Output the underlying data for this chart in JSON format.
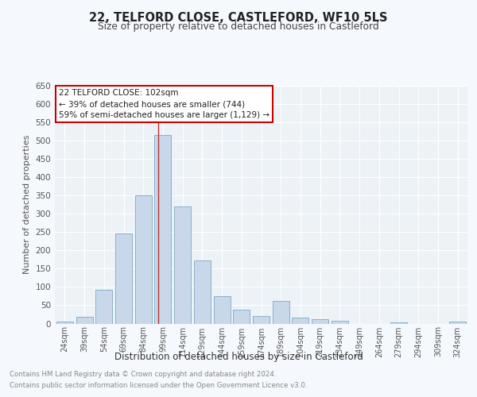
{
  "title": "22, TELFORD CLOSE, CASTLEFORD, WF10 5LS",
  "subtitle": "Size of property relative to detached houses in Castleford",
  "xlabel": "Distribution of detached houses by size in Castleford",
  "ylabel": "Number of detached properties",
  "footnote1": "Contains HM Land Registry data © Crown copyright and database right 2024.",
  "footnote2": "Contains public sector information licensed under the Open Government Licence v3.0.",
  "bar_labels": [
    "24sqm",
    "39sqm",
    "54sqm",
    "69sqm",
    "84sqm",
    "99sqm",
    "114sqm",
    "129sqm",
    "144sqm",
    "159sqm",
    "174sqm",
    "189sqm",
    "204sqm",
    "219sqm",
    "234sqm",
    "249sqm",
    "264sqm",
    "279sqm",
    "294sqm",
    "309sqm",
    "324sqm"
  ],
  "bar_values": [
    5,
    18,
    92,
    247,
    350,
    515,
    320,
    172,
    75,
    37,
    20,
    62,
    16,
    13,
    7,
    0,
    0,
    4,
    0,
    0,
    5
  ],
  "bar_color": "#c8d8ea",
  "bar_edge_color": "#7aaac8",
  "property_label": "22 TELFORD CLOSE: 102sqm",
  "annotation_line1": "← 39% of detached houses are smaller (744)",
  "annotation_line2": "59% of semi-detached houses are larger (1,129) →",
  "vline_color": "#bb3333",
  "annotation_box_edge": "#cc0000",
  "ylim": [
    0,
    650
  ],
  "yticks": [
    0,
    50,
    100,
    150,
    200,
    250,
    300,
    350,
    400,
    450,
    500,
    550,
    600,
    650
  ],
  "fig_bg_color": "#f5f8fc",
  "plot_bg_color": "#edf2f7"
}
